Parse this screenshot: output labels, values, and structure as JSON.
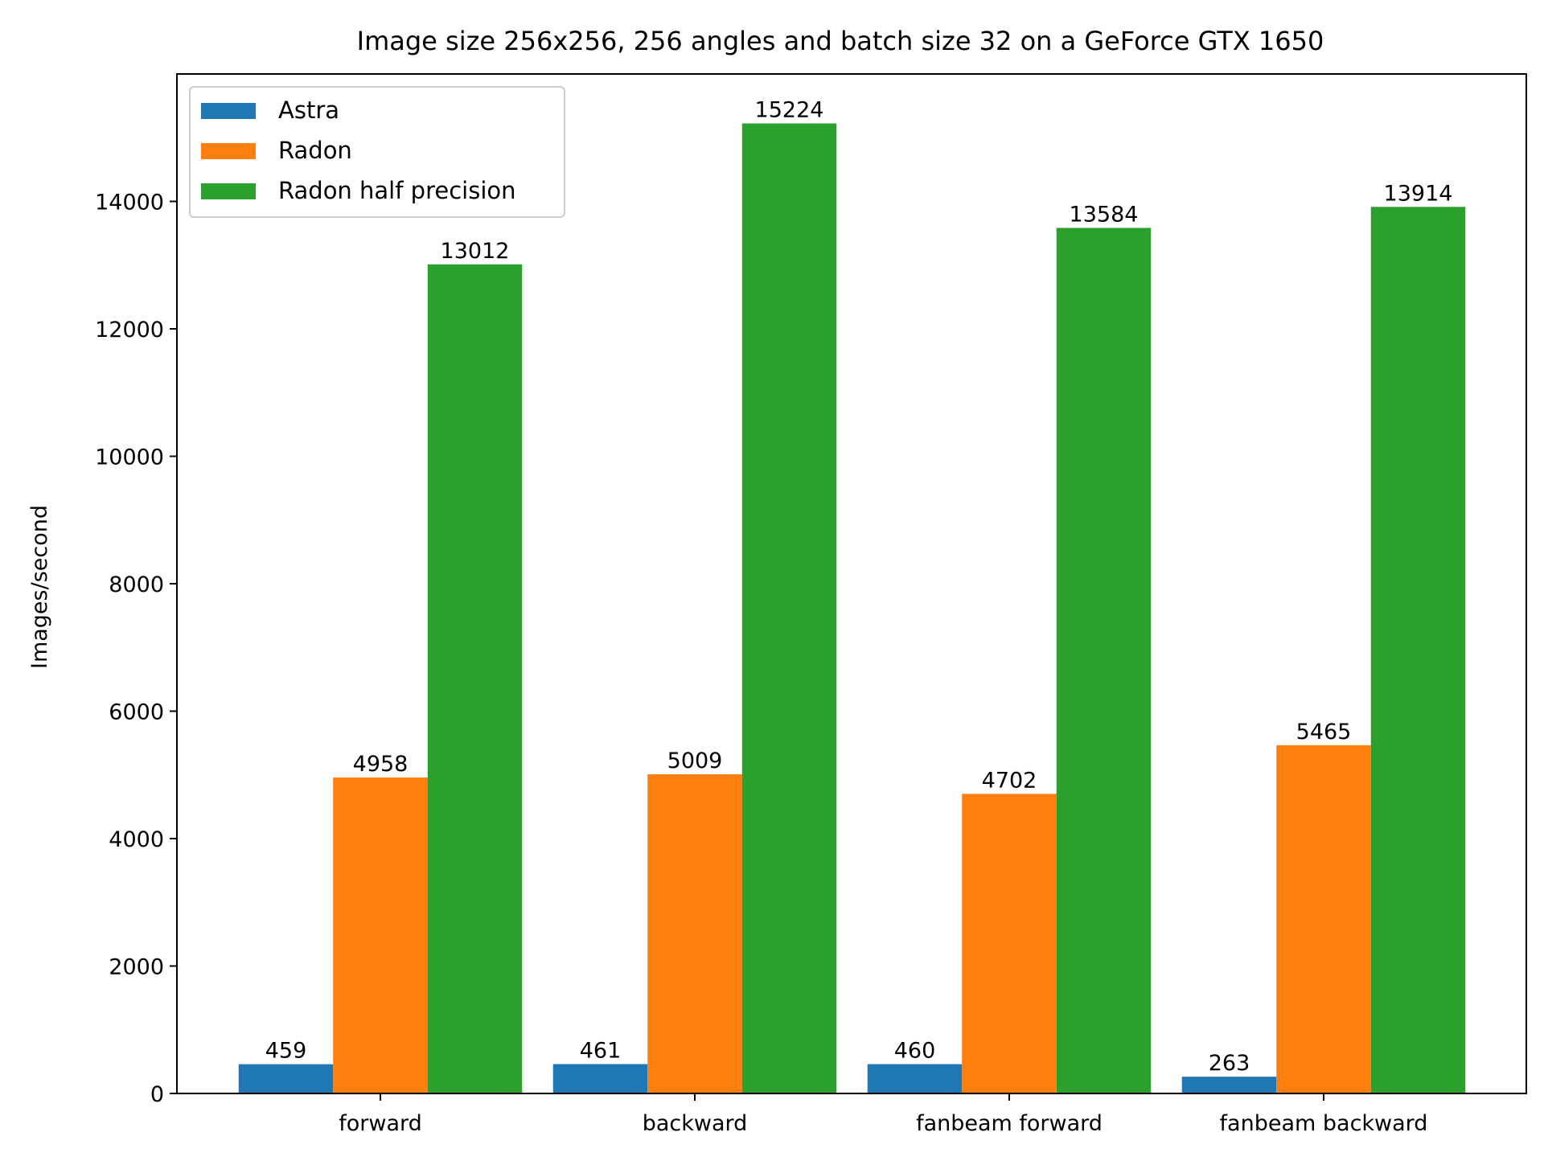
{
  "chart_data": {
    "type": "bar",
    "title": "Image size 256x256, 256 angles and batch size 32 on a GeForce GTX 1650",
    "xlabel": "",
    "ylabel": "Images/second",
    "ylim": [
      0,
      16000
    ],
    "yticks": [
      0,
      2000,
      4000,
      6000,
      8000,
      10000,
      12000,
      14000
    ],
    "categories": [
      "forward",
      "backward",
      "fanbeam forward",
      "fanbeam backward"
    ],
    "series": [
      {
        "name": "Astra",
        "color": "#1f77b4",
        "values": [
          459,
          461,
          460,
          263
        ]
      },
      {
        "name": "Radon",
        "color": "#ff7f0e",
        "values": [
          4958,
          5009,
          4702,
          5465
        ]
      },
      {
        "name": "Radon half precision",
        "color": "#2ca02c",
        "values": [
          13012,
          15224,
          13584,
          13914
        ]
      }
    ],
    "grid": false,
    "legend_position": "top-left",
    "data_labels": true
  }
}
